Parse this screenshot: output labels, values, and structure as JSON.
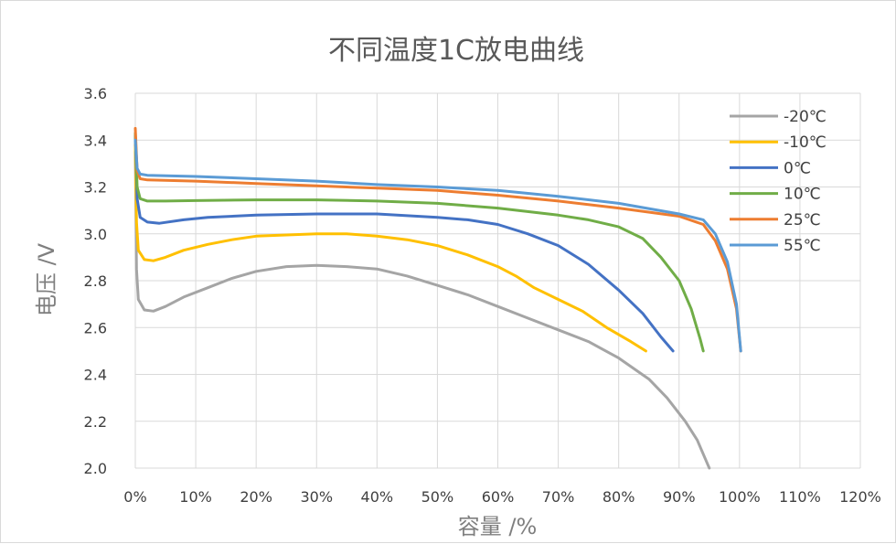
{
  "chart_data": {
    "type": "line",
    "title": "不同温度1C放电曲线",
    "xlabel": "容量 /%",
    "ylabel": "电压 /V",
    "xlim": [
      0,
      120
    ],
    "ylim": [
      2.0,
      3.6
    ],
    "x_ticks": [
      0,
      10,
      20,
      30,
      40,
      50,
      60,
      70,
      80,
      90,
      100,
      110,
      120
    ],
    "x_tick_labels": [
      "0%",
      "10%",
      "20%",
      "30%",
      "40%",
      "50%",
      "60%",
      "70%",
      "80%",
      "90%",
      "100%",
      "110%",
      "120%"
    ],
    "y_ticks": [
      2.0,
      2.2,
      2.4,
      2.6,
      2.8,
      3.0,
      3.2,
      3.4,
      3.6
    ],
    "y_tick_labels": [
      "2.0",
      "2.2",
      "2.4",
      "2.6",
      "2.8",
      "3.0",
      "3.2",
      "3.4",
      "3.6"
    ],
    "grid": true,
    "legend_position": "top-right",
    "series": [
      {
        "name": "-20℃",
        "color": "#a5a5a5",
        "points": [
          [
            0,
            3.35
          ],
          [
            0.2,
            2.85
          ],
          [
            0.5,
            2.72
          ],
          [
            1.5,
            2.675
          ],
          [
            3,
            2.67
          ],
          [
            5,
            2.69
          ],
          [
            8,
            2.73
          ],
          [
            12,
            2.77
          ],
          [
            16,
            2.81
          ],
          [
            20,
            2.84
          ],
          [
            25,
            2.86
          ],
          [
            30,
            2.865
          ],
          [
            35,
            2.86
          ],
          [
            40,
            2.85
          ],
          [
            45,
            2.82
          ],
          [
            50,
            2.78
          ],
          [
            55,
            2.74
          ],
          [
            60,
            2.69
          ],
          [
            65,
            2.64
          ],
          [
            70,
            2.59
          ],
          [
            75,
            2.54
          ],
          [
            80,
            2.47
          ],
          [
            85,
            2.38
          ],
          [
            88,
            2.3
          ],
          [
            91,
            2.2
          ],
          [
            93,
            2.12
          ],
          [
            95,
            2.0
          ]
        ]
      },
      {
        "name": "-10℃",
        "color": "#ffc000",
        "points": [
          [
            0,
            3.38
          ],
          [
            0.2,
            3.05
          ],
          [
            0.5,
            2.93
          ],
          [
            1.5,
            2.89
          ],
          [
            3,
            2.885
          ],
          [
            5,
            2.9
          ],
          [
            8,
            2.93
          ],
          [
            12,
            2.955
          ],
          [
            16,
            2.975
          ],
          [
            20,
            2.99
          ],
          [
            25,
            2.995
          ],
          [
            30,
            3.0
          ],
          [
            35,
            3.0
          ],
          [
            40,
            2.99
          ],
          [
            45,
            2.975
          ],
          [
            50,
            2.95
          ],
          [
            55,
            2.91
          ],
          [
            60,
            2.86
          ],
          [
            63,
            2.82
          ],
          [
            66,
            2.77
          ],
          [
            70,
            2.72
          ],
          [
            74,
            2.67
          ],
          [
            78,
            2.6
          ],
          [
            82,
            2.54
          ],
          [
            84.5,
            2.5
          ]
        ]
      },
      {
        "name": "0℃",
        "color": "#4472c4",
        "points": [
          [
            0,
            3.42
          ],
          [
            0.3,
            3.15
          ],
          [
            0.8,
            3.07
          ],
          [
            2,
            3.05
          ],
          [
            4,
            3.045
          ],
          [
            8,
            3.06
          ],
          [
            12,
            3.07
          ],
          [
            20,
            3.08
          ],
          [
            30,
            3.085
          ],
          [
            40,
            3.085
          ],
          [
            50,
            3.07
          ],
          [
            55,
            3.06
          ],
          [
            60,
            3.04
          ],
          [
            65,
            3.0
          ],
          [
            70,
            2.95
          ],
          [
            75,
            2.87
          ],
          [
            80,
            2.76
          ],
          [
            84,
            2.66
          ],
          [
            87,
            2.56
          ],
          [
            89,
            2.5
          ]
        ]
      },
      {
        "name": "10℃",
        "color": "#70ad47",
        "points": [
          [
            0,
            3.43
          ],
          [
            0.3,
            3.2
          ],
          [
            0.8,
            3.15
          ],
          [
            2,
            3.14
          ],
          [
            5,
            3.14
          ],
          [
            10,
            3.142
          ],
          [
            20,
            3.145
          ],
          [
            30,
            3.145
          ],
          [
            40,
            3.14
          ],
          [
            50,
            3.13
          ],
          [
            60,
            3.11
          ],
          [
            70,
            3.08
          ],
          [
            75,
            3.06
          ],
          [
            80,
            3.03
          ],
          [
            84,
            2.98
          ],
          [
            87,
            2.9
          ],
          [
            90,
            2.8
          ],
          [
            92,
            2.68
          ],
          [
            93.5,
            2.55
          ],
          [
            94,
            2.5
          ]
        ]
      },
      {
        "name": "25℃",
        "color": "#ed7d31",
        "points": [
          [
            0,
            3.45
          ],
          [
            0.3,
            3.27
          ],
          [
            0.8,
            3.235
          ],
          [
            2,
            3.23
          ],
          [
            10,
            3.225
          ],
          [
            20,
            3.215
          ],
          [
            30,
            3.205
          ],
          [
            40,
            3.195
          ],
          [
            50,
            3.185
          ],
          [
            60,
            3.165
          ],
          [
            70,
            3.14
          ],
          [
            80,
            3.11
          ],
          [
            90,
            3.075
          ],
          [
            94,
            3.04
          ],
          [
            96,
            2.97
          ],
          [
            98,
            2.85
          ],
          [
            99.5,
            2.68
          ],
          [
            100.2,
            2.5
          ]
        ]
      },
      {
        "name": "55℃",
        "color": "#5b9bd5",
        "points": [
          [
            0,
            3.4
          ],
          [
            0.3,
            3.28
          ],
          [
            0.8,
            3.255
          ],
          [
            2,
            3.25
          ],
          [
            10,
            3.245
          ],
          [
            20,
            3.235
          ],
          [
            30,
            3.225
          ],
          [
            40,
            3.21
          ],
          [
            50,
            3.2
          ],
          [
            60,
            3.185
          ],
          [
            70,
            3.16
          ],
          [
            80,
            3.13
          ],
          [
            90,
            3.085
          ],
          [
            94,
            3.06
          ],
          [
            96,
            3.0
          ],
          [
            98,
            2.88
          ],
          [
            99.5,
            2.7
          ],
          [
            100.2,
            2.5
          ]
        ]
      }
    ]
  }
}
